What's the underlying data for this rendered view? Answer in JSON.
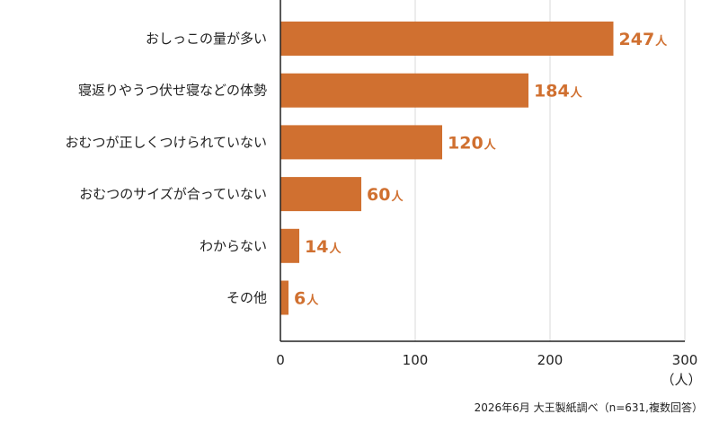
{
  "chart_data": {
    "type": "bar",
    "orientation": "horizontal",
    "categories": [
      "おしっこの量が多い",
      "寝返りやうつ伏せ寝などの体勢",
      "おむつが正しくつけられていない",
      "おむつのサイズが合っていない",
      "わからない",
      "その他"
    ],
    "values": [
      247,
      184,
      120,
      60,
      14,
      6
    ],
    "value_unit": "人",
    "xlim": [
      0,
      300
    ],
    "xticks": [
      "0",
      "100",
      "200",
      "300"
    ],
    "xunit_label": "（人）",
    "grid": "vertical",
    "colors": {
      "bar": "#d07030",
      "value_text": "#d07030",
      "grid": "#d9d9d9",
      "axis": "#222222"
    }
  },
  "footnote": "2026年6月 大王製紙調べ（n=631,複数回答）"
}
